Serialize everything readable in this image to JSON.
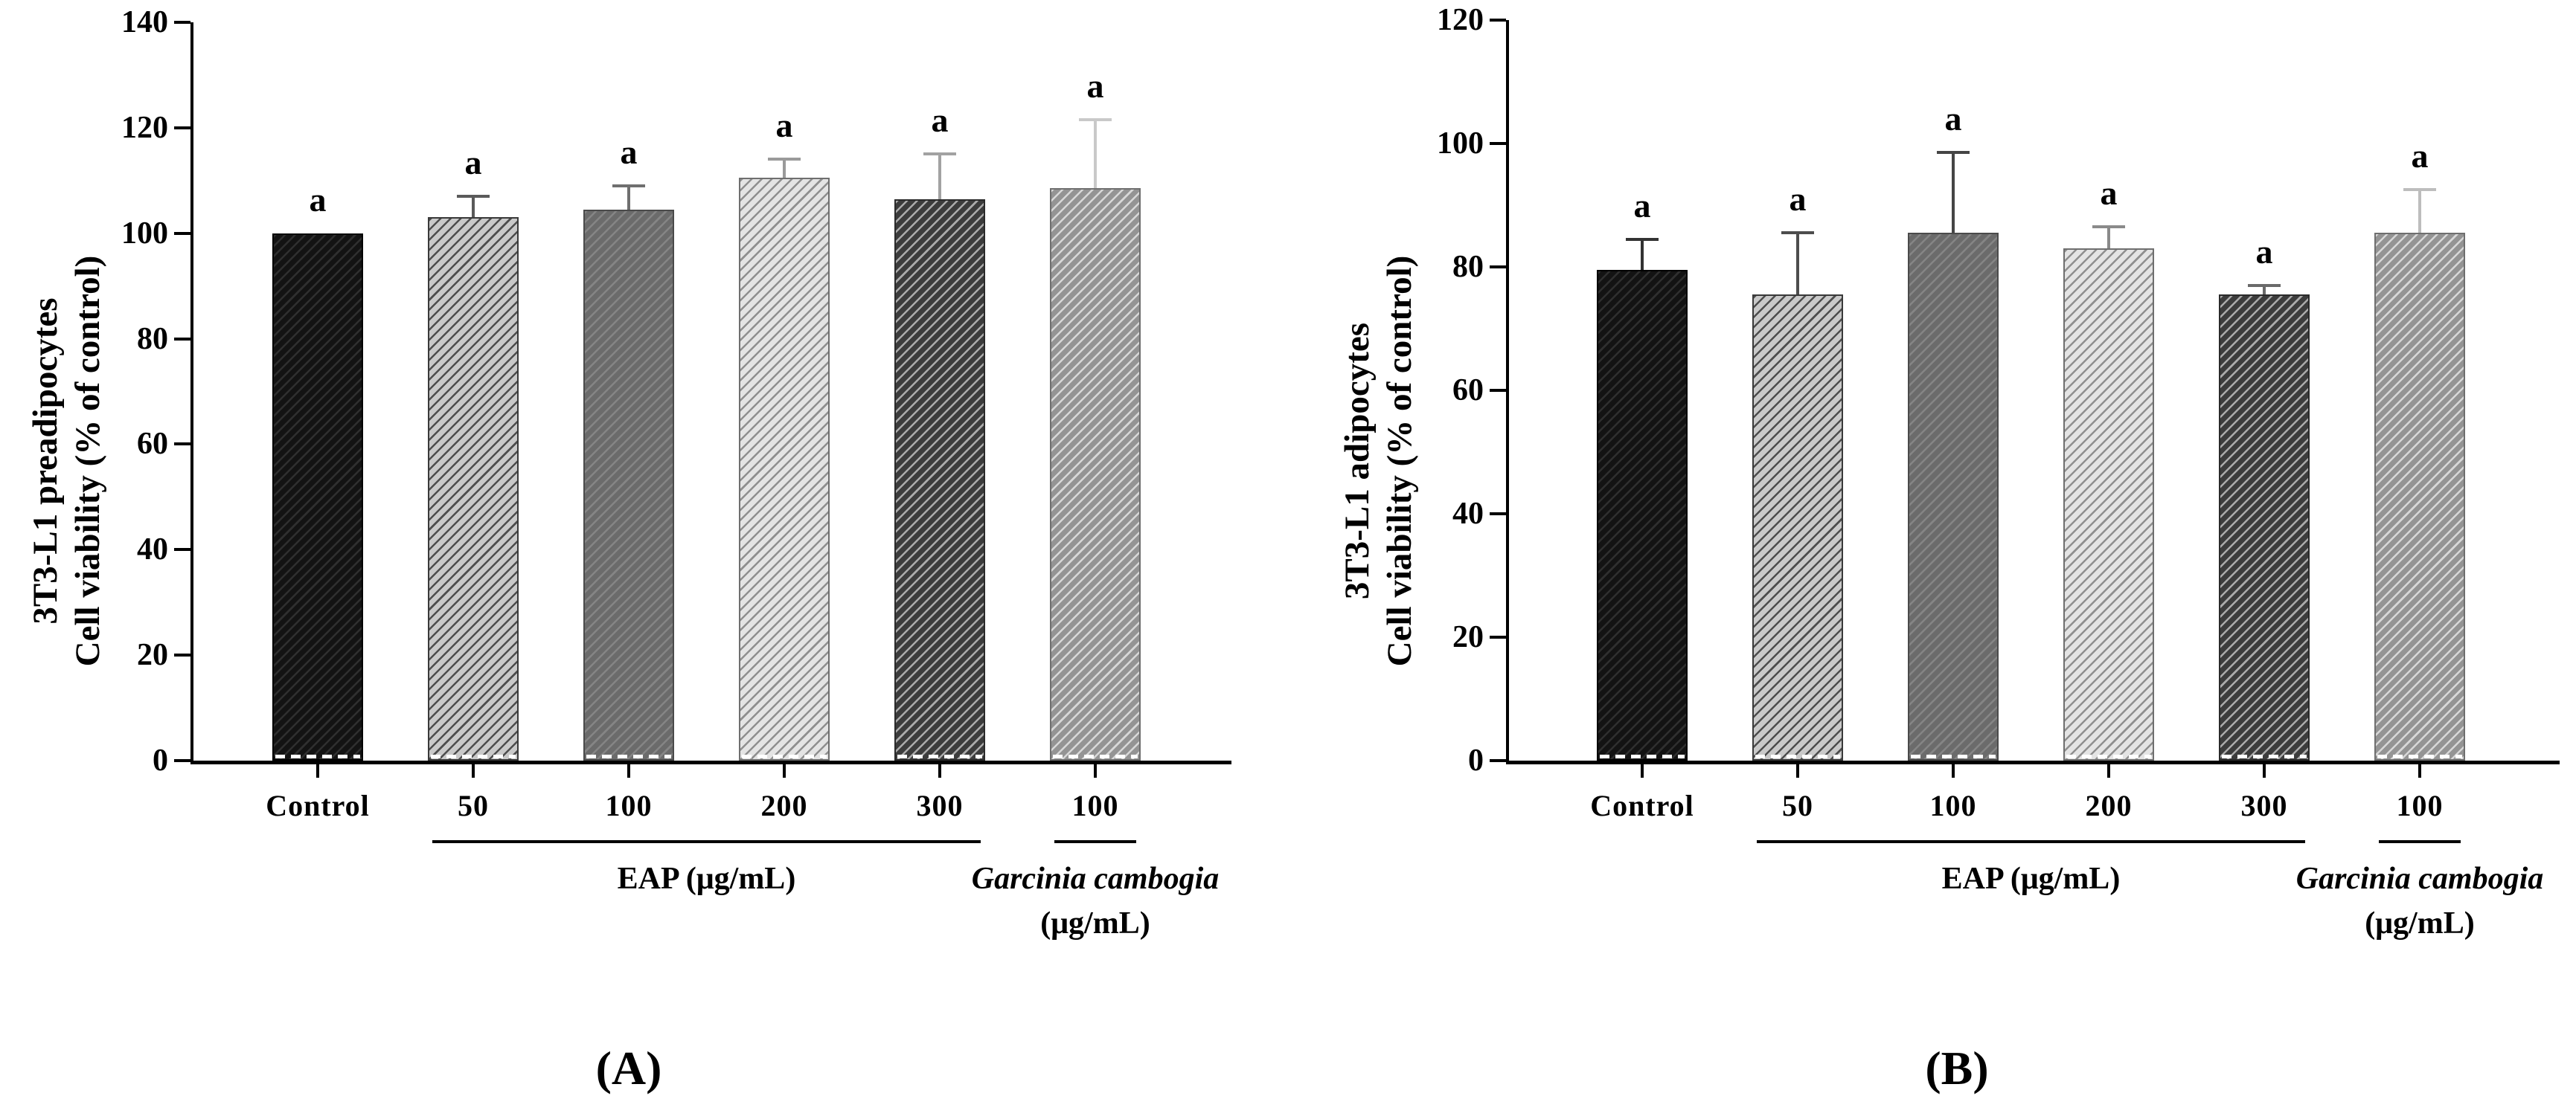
{
  "figure": {
    "background": "#ffffff",
    "axis_color": "#000000",
    "text_color": "#000000"
  },
  "chart_data": [
    {
      "type": "bar",
      "panel_label": "(A)",
      "ylabel_line1": "3T3-L1 preadipocytes",
      "ylabel_line2": "Cell viability (% of control)",
      "ylim": [
        0,
        140
      ],
      "yticks": [
        0,
        20,
        40,
        60,
        80,
        100,
        120,
        140
      ],
      "ytick_labels": [
        "0",
        "20",
        "40",
        "60",
        "80",
        "100",
        "120",
        "140"
      ],
      "grid": false,
      "legend": "none",
      "categories": [
        "Control",
        "50",
        "100",
        "200",
        "300",
        "100"
      ],
      "values": [
        100,
        103,
        104.5,
        110.5,
        106.5,
        108.5
      ],
      "errors_plus": [
        0,
        4,
        4.5,
        3.5,
        8.5,
        13
      ],
      "sig_labels": [
        "a",
        "a",
        "a",
        "a",
        "a",
        "a"
      ],
      "groups": [
        {
          "label": "EAP (μg/mL)",
          "label2": "",
          "from": 1,
          "to": 4,
          "italic": false
        },
        {
          "label": "Garcinia cambogia",
          "label2": "(μg/mL)",
          "from": 5,
          "to": 5,
          "italic": true
        }
      ],
      "bar_styles": [
        {
          "fill": "#131313",
          "hatch": "#2f2f2f",
          "border": "#000000",
          "err": "#444444"
        },
        {
          "fill": "#c9c9c9",
          "hatch": "#4d4d4d",
          "border": "#3a3a3a",
          "err": "#5a5a5a"
        },
        {
          "fill": "#6b6b6b",
          "hatch": "#858585",
          "border": "#4a4a4a",
          "err": "#6f6f6f"
        },
        {
          "fill": "#e4e4e4",
          "hatch": "#8f8f8f",
          "border": "#6f6f6f",
          "err": "#9a9a9a"
        },
        {
          "fill": "#3c3c3c",
          "hatch": "#ababab",
          "border": "#2a2a2a",
          "err": "#a2a2a2"
        },
        {
          "fill": "#949494",
          "hatch": "#d8d8d8",
          "border": "#6f6f6f",
          "err": "#c9c9c9"
        }
      ]
    },
    {
      "type": "bar",
      "panel_label": "(B)",
      "ylabel_line1": "3T3-L1 adipocytes",
      "ylabel_line2": "Cell viability (% of control)",
      "ylim": [
        0,
        120
      ],
      "yticks": [
        0,
        20,
        40,
        60,
        80,
        100,
        120
      ],
      "ytick_labels": [
        "0",
        "20",
        "40",
        "60",
        "80",
        "100",
        "120"
      ],
      "grid": false,
      "legend": "none",
      "categories": [
        "Control",
        "50",
        "100",
        "200",
        "300",
        "100"
      ],
      "values": [
        79.5,
        75.5,
        85.5,
        83,
        75.5,
        85.5
      ],
      "errors_plus": [
        5,
        10,
        13,
        3.5,
        1.5,
        7
      ],
      "sig_labels": [
        "a",
        "a",
        "a",
        "a",
        "a",
        "a"
      ],
      "groups": [
        {
          "label": "EAP (μg/mL)",
          "label2": "",
          "from": 1,
          "to": 4,
          "italic": false
        },
        {
          "label": "Garcinia cambogia",
          "label2": "(μg/mL)",
          "from": 5,
          "to": 5,
          "italic": true
        }
      ],
      "bar_styles": [
        {
          "fill": "#131313",
          "hatch": "#2f2f2f",
          "border": "#000000",
          "err": "#333333"
        },
        {
          "fill": "#c9c9c9",
          "hatch": "#4d4d4d",
          "border": "#3a3a3a",
          "err": "#4d4d4d"
        },
        {
          "fill": "#6b6b6b",
          "hatch": "#858585",
          "border": "#4a4a4a",
          "err": "#454545"
        },
        {
          "fill": "#e4e4e4",
          "hatch": "#8f8f8f",
          "border": "#6f6f6f",
          "err": "#8a8a8a"
        },
        {
          "fill": "#3c3c3c",
          "hatch": "#ababab",
          "border": "#2a2a2a",
          "err": "#6a6a6a"
        },
        {
          "fill": "#949494",
          "hatch": "#d8d8d8",
          "border": "#6f6f6f",
          "err": "#bdbdbd"
        }
      ]
    }
  ]
}
